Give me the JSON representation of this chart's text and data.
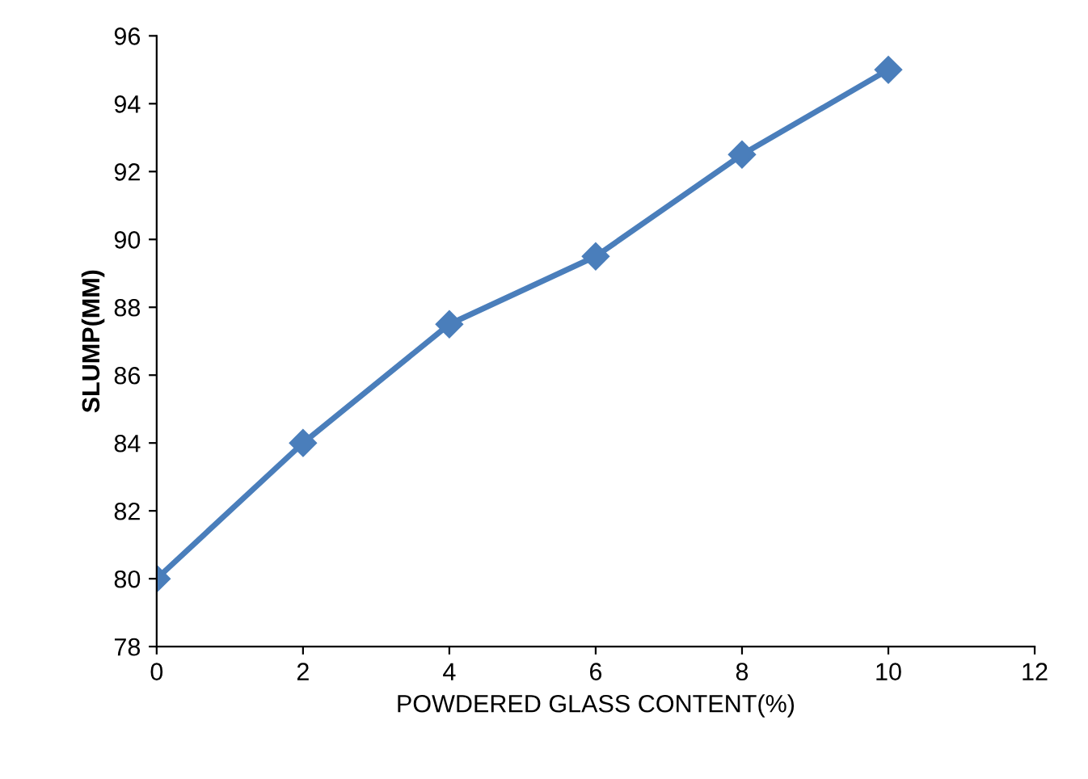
{
  "chart_data": {
    "type": "line",
    "xlabel": "POWDERED GLASS CONTENT(%)",
    "ylabel": "SLUMP(MM)",
    "x": [
      0,
      2,
      4,
      6,
      8,
      10
    ],
    "series": [
      {
        "color": "#4a7ebb",
        "values": [
          80,
          84,
          87.5,
          89.5,
          92.5,
          95
        ]
      }
    ],
    "xlim": [
      0,
      12
    ],
    "xticks": [
      0,
      2,
      4,
      6,
      8,
      10,
      12
    ],
    "ylim": [
      78,
      96
    ],
    "yticks": [
      78,
      80,
      82,
      84,
      86,
      88,
      90,
      92,
      94,
      96
    ],
    "grid": false,
    "legend": false,
    "marker": "diamond",
    "line_style": "solid"
  }
}
